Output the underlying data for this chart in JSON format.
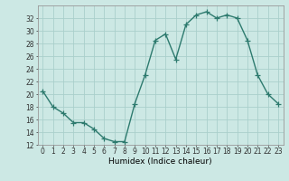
{
  "x": [
    0,
    1,
    2,
    3,
    4,
    5,
    6,
    7,
    8,
    9,
    10,
    11,
    12,
    13,
    14,
    15,
    16,
    17,
    18,
    19,
    20,
    21,
    22,
    23
  ],
  "y": [
    20.5,
    18,
    17,
    15.5,
    15.5,
    14.5,
    13,
    12.5,
    12.5,
    18.5,
    23,
    28.5,
    29.5,
    25.5,
    31,
    32.5,
    33,
    32,
    32.5,
    32,
    28.5,
    23,
    20,
    18.5
  ],
  "line_color": "#2d7a6e",
  "marker": "+",
  "marker_size": 4,
  "bg_color": "#cce8e4",
  "grid_color": "#aacfcb",
  "xlabel": "Humidex (Indice chaleur)",
  "xlim": [
    -0.5,
    23.5
  ],
  "ylim": [
    12,
    34
  ],
  "yticks": [
    12,
    14,
    16,
    18,
    20,
    22,
    24,
    26,
    28,
    30,
    32
  ],
  "xticks": [
    0,
    1,
    2,
    3,
    4,
    5,
    6,
    7,
    8,
    9,
    10,
    11,
    12,
    13,
    14,
    15,
    16,
    17,
    18,
    19,
    20,
    21,
    22,
    23
  ],
  "xlabel_fontsize": 6.5,
  "tick_fontsize": 5.5,
  "linewidth": 1.0
}
